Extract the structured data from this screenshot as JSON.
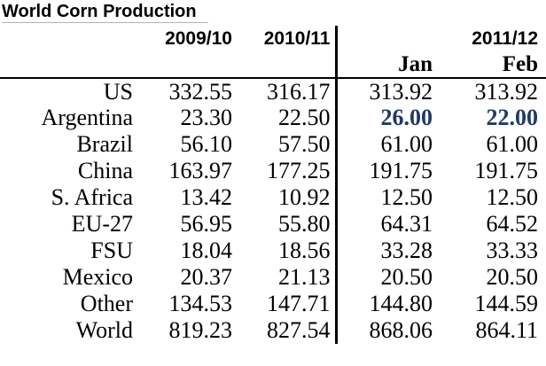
{
  "title": "World Corn Production",
  "colors": {
    "highlight_text": "#1f3a66",
    "rule": "#000000",
    "title_underline": "#b3b3b3"
  },
  "table": {
    "year_headers": [
      "2009/10",
      "2010/11",
      "2011/12"
    ],
    "month_headers": [
      "Jan",
      "Feb"
    ],
    "rows": [
      {
        "label": "US",
        "y2009_10": "332.55",
        "y2010_11": "316.17",
        "jan": "313.92",
        "feb": "313.92",
        "highlight_janfeb": false
      },
      {
        "label": "Argentina",
        "y2009_10": "23.30",
        "y2010_11": "22.50",
        "jan": "26.00",
        "feb": "22.00",
        "highlight_janfeb": true
      },
      {
        "label": "Brazil",
        "y2009_10": "56.10",
        "y2010_11": "57.50",
        "jan": "61.00",
        "feb": "61.00",
        "highlight_janfeb": false
      },
      {
        "label": "China",
        "y2009_10": "163.97",
        "y2010_11": "177.25",
        "jan": "191.75",
        "feb": "191.75",
        "highlight_janfeb": false
      },
      {
        "label": "S. Africa",
        "y2009_10": "13.42",
        "y2010_11": "10.92",
        "jan": "12.50",
        "feb": "12.50",
        "highlight_janfeb": false
      },
      {
        "label": "EU-27",
        "y2009_10": "56.95",
        "y2010_11": "55.80",
        "jan": "64.31",
        "feb": "64.52",
        "highlight_janfeb": false
      },
      {
        "label": "FSU",
        "y2009_10": "18.04",
        "y2010_11": "18.56",
        "jan": "33.28",
        "feb": "33.33",
        "highlight_janfeb": false
      },
      {
        "label": "Mexico",
        "y2009_10": "20.37",
        "y2010_11": "21.13",
        "jan": "20.50",
        "feb": "20.50",
        "highlight_janfeb": false
      },
      {
        "label": "Other",
        "y2009_10": "134.53",
        "y2010_11": "147.71",
        "jan": "144.80",
        "feb": "144.59",
        "highlight_janfeb": false
      },
      {
        "label": "World",
        "y2009_10": "819.23",
        "y2010_11": "827.54",
        "jan": "868.06",
        "feb": "864.11",
        "highlight_janfeb": false
      }
    ]
  }
}
